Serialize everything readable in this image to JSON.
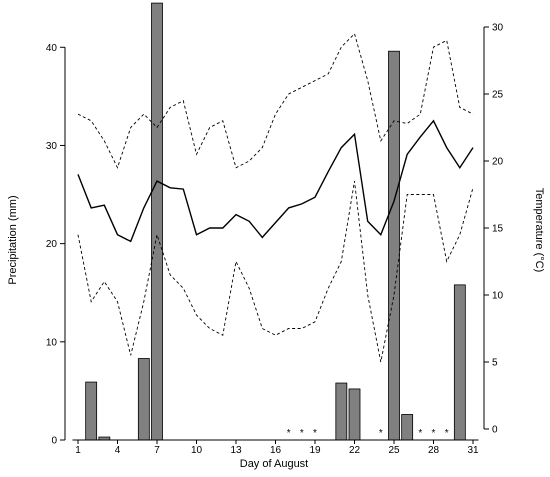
{
  "chart_data": {
    "type": "bar",
    "xlabel": "Day of August",
    "ylabel_left": "Precipitation (mm)",
    "ylabel_right": "Temperature (°C)",
    "x_ticks": [
      1,
      4,
      7,
      10,
      13,
      16,
      19,
      22,
      25,
      28,
      31
    ],
    "y_left_ticks": [
      0,
      10,
      20,
      30,
      40
    ],
    "y_left_range": [
      0,
      44
    ],
    "y_right_ticks": [
      0,
      5,
      10,
      15,
      20,
      25,
      30
    ],
    "y_right_range": [
      0,
      30
    ],
    "days": [
      1,
      2,
      3,
      4,
      5,
      6,
      7,
      8,
      9,
      10,
      11,
      12,
      13,
      14,
      15,
      16,
      17,
      18,
      19,
      20,
      21,
      22,
      23,
      24,
      25,
      26,
      27,
      28,
      29,
      30,
      31
    ],
    "precipitation": [
      0,
      5.9,
      0.3,
      0,
      0,
      8.3,
      44.5,
      0,
      0,
      0,
      0,
      0,
      0,
      0,
      0,
      0,
      0,
      0,
      0,
      0,
      5.8,
      5.2,
      0,
      0,
      39.6,
      2.6,
      0,
      0,
      0,
      15.8,
      0
    ],
    "trace_days": [
      17,
      18,
      19,
      24,
      27,
      28,
      29
    ],
    "trace_marker": "*",
    "temperature_series": [
      {
        "stat": "max",
        "style": "dashed",
        "values": [
          23.5,
          23.0,
          21.5,
          19.5,
          22.5,
          23.5,
          22.5,
          24.0,
          24.5,
          20.5,
          22.5,
          23.0,
          19.5,
          20.0,
          21.0,
          23.5,
          25.0,
          25.5,
          26.0,
          26.5,
          28.5,
          29.5,
          26.0,
          21.5,
          23.0,
          22.8,
          23.5,
          28.5,
          29.0,
          24.0,
          23.5
        ]
      },
      {
        "stat": "mean",
        "style": "solid",
        "values": [
          19.0,
          16.5,
          16.7,
          14.5,
          14.0,
          16.5,
          18.5,
          18.0,
          17.9,
          14.5,
          15.0,
          15.0,
          16.0,
          15.5,
          14.3,
          15.4,
          16.5,
          16.8,
          17.3,
          19.2,
          21.0,
          22.0,
          15.5,
          14.5,
          17.0,
          20.5,
          21.8,
          23.0,
          21.0,
          19.5,
          21.0
        ]
      },
      {
        "stat": "min",
        "style": "dashed",
        "values": [
          14.5,
          9.5,
          11.0,
          9.5,
          5.5,
          9.5,
          14.5,
          11.5,
          10.5,
          8.5,
          7.5,
          7.0,
          12.5,
          10.5,
          7.5,
          7.0,
          7.5,
          7.5,
          8.0,
          10.5,
          12.5,
          18.5,
          10.0,
          5.0,
          10.0,
          17.5,
          17.5,
          17.5,
          12.5,
          14.5,
          18.0
        ]
      }
    ]
  }
}
